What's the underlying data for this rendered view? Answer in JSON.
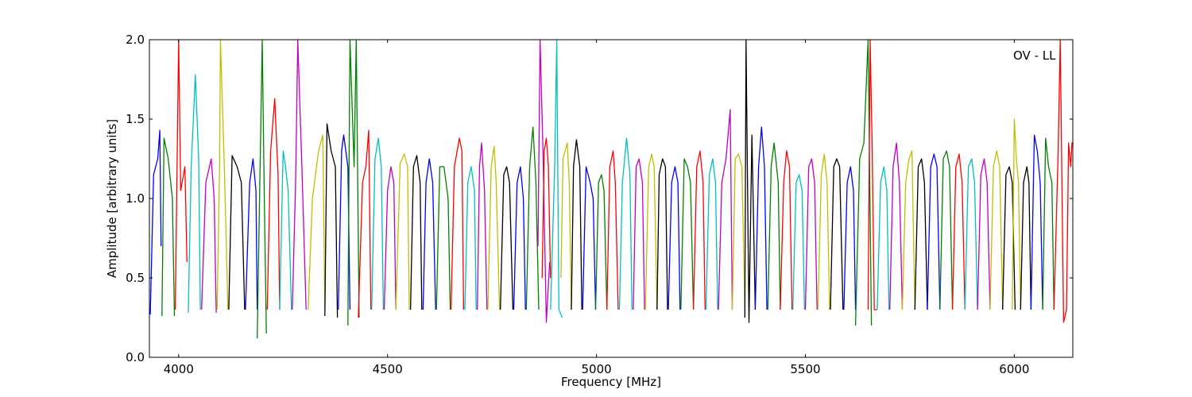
{
  "chart_data": {
    "type": "line",
    "title": "",
    "xlabel": "Frequency [MHz]",
    "ylabel": "Amplitude [arbitrary units]",
    "annotation": "OV - LL",
    "xlim": [
      3930,
      6140
    ],
    "ylim": [
      0.0,
      2.0
    ],
    "xticks": [
      4000,
      4500,
      5000,
      5500,
      6000
    ],
    "yticks": [
      0.0,
      0.5,
      1.0,
      1.5,
      2.0
    ],
    "xtick_labels": [
      "4000",
      "4500",
      "5000",
      "5500",
      "6000"
    ],
    "ytick_labels": [
      "0.0",
      "0.5",
      "1.0",
      "1.5",
      "2.0"
    ],
    "grid": false,
    "legend": "none",
    "colors": [
      "#0000ff",
      "#008000",
      "#ff0000",
      "#00bfbf",
      "#bf00bf",
      "#bfbf00",
      "#000000"
    ],
    "background_series_color": "#c0c0c0",
    "series": [
      {
        "color": "#0000ff",
        "x": [
          3932,
          3940,
          3950,
          3955,
          3958
        ],
        "y": [
          0.27,
          1.15,
          1.25,
          1.43,
          0.7
        ]
      },
      {
        "color": "#008000",
        "x": [
          3960,
          3965,
          3975,
          3985,
          3990
        ],
        "y": [
          0.26,
          1.38,
          1.25,
          1.0,
          0.26
        ]
      },
      {
        "color": "#ff0000",
        "x": [
          3992,
          4000,
          4005,
          4015,
          4020
        ],
        "y": [
          0.3,
          2.0,
          1.05,
          1.2,
          0.6
        ]
      },
      {
        "color": "#00bfbf",
        "x": [
          4023,
          4030,
          4040,
          4048,
          4052
        ],
        "y": [
          0.28,
          1.2,
          1.78,
          1.25,
          0.3
        ]
      },
      {
        "color": "#bf00bf",
        "x": [
          4055,
          4065,
          4078,
          4085,
          4090
        ],
        "y": [
          0.3,
          1.1,
          1.25,
          1.0,
          0.28
        ]
      },
      {
        "color": "#bfbf00",
        "x": [
          4092,
          4098,
          4100,
          4110,
          4118
        ],
        "y": [
          0.3,
          1.2,
          2.0,
          1.15,
          0.3
        ]
      },
      {
        "color": "#000000",
        "x": [
          4120,
          4128,
          4140,
          4150,
          4158
        ],
        "y": [
          0.3,
          1.27,
          1.2,
          1.1,
          0.3
        ]
      },
      {
        "color": "#0000ff",
        "x": [
          4160,
          4170,
          4178,
          4185,
          4188
        ],
        "y": [
          0.3,
          1.1,
          1.25,
          1.05,
          0.3
        ]
      },
      {
        "color": "#008000",
        "x": [
          4188,
          4195,
          4200,
          4205,
          4210
        ],
        "y": [
          0.12,
          1.2,
          2.0,
          1.0,
          0.15
        ]
      },
      {
        "color": "#ff0000",
        "x": [
          4212,
          4220,
          4230,
          4238,
          4242
        ],
        "y": [
          0.3,
          1.29,
          1.63,
          1.15,
          0.3
        ]
      },
      {
        "color": "#00bfbf",
        "x": [
          4242,
          4250,
          4255,
          4262,
          4270
        ],
        "y": [
          0.3,
          1.3,
          1.22,
          1.05,
          0.3
        ]
      },
      {
        "color": "#bf00bf",
        "x": [
          4272,
          4280,
          4285,
          4295,
          4305
        ],
        "y": [
          0.3,
          1.1,
          2.0,
          1.2,
          0.3
        ]
      },
      {
        "color": "#bfbf00",
        "x": [
          4310,
          4320,
          4335,
          4345,
          4350
        ],
        "y": [
          0.3,
          1.0,
          1.3,
          1.4,
          0.3
        ]
      },
      {
        "color": "#000000",
        "x": [
          4350,
          4355,
          4365,
          4375,
          4380
        ],
        "y": [
          0.26,
          1.47,
          1.3,
          1.2,
          0.25
        ]
      },
      {
        "color": "#0000ff",
        "x": [
          4382,
          4390,
          4395,
          4405,
          4410
        ],
        "y": [
          0.3,
          1.3,
          1.4,
          1.2,
          0.3
        ]
      },
      {
        "color": "#008000",
        "x": [
          4405,
          4410,
          4420,
          4425,
          4432
        ],
        "y": [
          0.2,
          2.0,
          1.2,
          2.0,
          0.25
        ]
      },
      {
        "color": "#ff0000",
        "x": [
          4430,
          4440,
          4448,
          4455,
          4460
        ],
        "y": [
          0.25,
          1.1,
          1.2,
          1.43,
          0.3
        ]
      },
      {
        "color": "#00bfbf",
        "x": [
          4462,
          4470,
          4478,
          4485,
          4490
        ],
        "y": [
          0.3,
          1.25,
          1.38,
          1.2,
          0.3
        ]
      },
      {
        "color": "#bf00bf",
        "x": [
          4492,
          4500,
          4508,
          4515,
          4520
        ],
        "y": [
          0.3,
          1.05,
          1.2,
          1.1,
          0.3
        ]
      },
      {
        "color": "#bfbf00",
        "x": [
          4520,
          4530,
          4540,
          4548,
          4552
        ],
        "y": [
          0.3,
          1.22,
          1.28,
          1.2,
          0.3
        ]
      },
      {
        "color": "#000000",
        "x": [
          4555,
          4562,
          4570,
          4578,
          4582
        ],
        "y": [
          0.3,
          1.2,
          1.27,
          1.1,
          0.3
        ]
      },
      {
        "color": "#0000ff",
        "x": [
          4585,
          4592,
          4600,
          4608,
          4615
        ],
        "y": [
          0.3,
          1.1,
          1.25,
          1.1,
          0.3
        ]
      },
      {
        "color": "#008000",
        "x": [
          4617,
          4625,
          4635,
          4645,
          4650
        ],
        "y": [
          0.3,
          1.2,
          1.2,
          1.0,
          0.3
        ]
      },
      {
        "color": "#ff0000",
        "x": [
          4652,
          4660,
          4672,
          4678,
          4682
        ],
        "y": [
          0.3,
          1.2,
          1.38,
          1.3,
          0.3
        ]
      },
      {
        "color": "#00bfbf",
        "x": [
          4685,
          4692,
          4700,
          4708,
          4712
        ],
        "y": [
          0.3,
          1.1,
          1.2,
          1.05,
          0.3
        ]
      },
      {
        "color": "#bf00bf",
        "x": [
          4715,
          4720,
          4725,
          4732,
          4738
        ],
        "y": [
          0.3,
          1.2,
          1.35,
          1.05,
          0.3
        ]
      },
      {
        "color": "#bfbf00",
        "x": [
          4740,
          4748,
          4755,
          4760,
          4768
        ],
        "y": [
          0.3,
          1.2,
          1.33,
          1.1,
          0.3
        ]
      },
      {
        "color": "#000000",
        "x": [
          4770,
          4778,
          4785,
          4792,
          4800
        ],
        "y": [
          0.3,
          1.15,
          1.2,
          1.1,
          0.3
        ]
      },
      {
        "color": "#0000ff",
        "x": [
          4802,
          4810,
          4818,
          4825,
          4830
        ],
        "y": [
          0.3,
          1.1,
          1.2,
          1.0,
          0.3
        ]
      },
      {
        "color": "#008000",
        "x": [
          4832,
          4840,
          4848,
          4855,
          4862
        ],
        "y": [
          0.3,
          1.2,
          1.45,
          1.1,
          0.3
        ]
      },
      {
        "color": "#bf00bf",
        "x": [
          4860,
          4865,
          4872,
          4880,
          4888
        ],
        "y": [
          0.7,
          2.0,
          1.3,
          0.22,
          0.6
        ]
      },
      {
        "color": "#ff0000",
        "x": [
          4870,
          4875,
          4880,
          4885,
          4890
        ],
        "y": [
          0.5,
          1.3,
          1.38,
          1.2,
          0.5
        ]
      },
      {
        "color": "#00bfbf",
        "x": [
          4890,
          4900,
          4905,
          4910,
          4918
        ],
        "y": [
          0.3,
          1.2,
          2.0,
          0.3,
          0.25
        ]
      },
      {
        "color": "#bfbf00",
        "x": [
          4915,
          4920,
          4930,
          4935,
          4940
        ],
        "y": [
          0.5,
          1.25,
          1.35,
          1.1,
          0.3
        ]
      },
      {
        "color": "#000000",
        "x": [
          4940,
          4945,
          4952,
          4960,
          4965
        ],
        "y": [
          0.3,
          1.2,
          1.37,
          1.2,
          0.3
        ]
      },
      {
        "color": "#0000ff",
        "x": [
          4967,
          4975,
          4985,
          4992,
          4998
        ],
        "y": [
          0.3,
          1.2,
          1.1,
          1.0,
          0.3
        ]
      },
      {
        "color": "#008000",
        "x": [
          4998,
          5005,
          5012,
          5018,
          5025
        ],
        "y": [
          0.3,
          1.1,
          1.15,
          1.05,
          0.3
        ]
      },
      {
        "color": "#ff0000",
        "x": [
          5025,
          5032,
          5040,
          5045,
          5052
        ],
        "y": [
          0.3,
          1.2,
          1.3,
          1.1,
          0.3
        ]
      },
      {
        "color": "#00bfbf",
        "x": [
          5055,
          5062,
          5072,
          5080,
          5085
        ],
        "y": [
          0.3,
          1.1,
          1.38,
          1.15,
          0.3
        ]
      },
      {
        "color": "#bf00bf",
        "x": [
          5088,
          5095,
          5102,
          5110,
          5115
        ],
        "y": [
          0.3,
          1.2,
          1.25,
          1.1,
          0.3
        ]
      },
      {
        "color": "#bfbf00",
        "x": [
          5117,
          5125,
          5132,
          5138,
          5145
        ],
        "y": [
          0.3,
          1.2,
          1.28,
          1.2,
          0.3
        ]
      },
      {
        "color": "#000000",
        "x": [
          5145,
          5150,
          5158,
          5165,
          5170
        ],
        "y": [
          0.3,
          1.15,
          1.25,
          1.2,
          0.3
        ]
      },
      {
        "color": "#0000ff",
        "x": [
          5172,
          5180,
          5188,
          5195,
          5200
        ],
        "y": [
          0.3,
          1.1,
          1.2,
          1.1,
          0.3
        ]
      },
      {
        "color": "#008000",
        "x": [
          5202,
          5210,
          5218,
          5225,
          5232
        ],
        "y": [
          0.3,
          1.25,
          1.2,
          1.1,
          0.3
        ]
      },
      {
        "color": "#ff0000",
        "x": [
          5232,
          5240,
          5248,
          5255,
          5260
        ],
        "y": [
          0.3,
          1.2,
          1.3,
          1.1,
          0.3
        ]
      },
      {
        "color": "#00bfbf",
        "x": [
          5262,
          5270,
          5278,
          5285,
          5290
        ],
        "y": [
          0.3,
          1.15,
          1.25,
          1.1,
          0.3
        ]
      },
      {
        "color": "#bf00bf",
        "x": [
          5292,
          5300,
          5310,
          5320,
          5325
        ],
        "y": [
          0.3,
          1.1,
          1.25,
          1.56,
          0.3
        ]
      },
      {
        "color": "#bfbf00",
        "x": [
          5325,
          5332,
          5340,
          5348,
          5355
        ],
        "y": [
          0.3,
          1.25,
          1.28,
          1.2,
          0.3
        ]
      },
      {
        "color": "#000000",
        "x": [
          5355,
          5358,
          5365,
          5372,
          5380
        ],
        "y": [
          0.25,
          2.0,
          0.22,
          1.4,
          0.3
        ]
      },
      {
        "color": "#0000ff",
        "x": [
          5380,
          5388,
          5395,
          5402,
          5408
        ],
        "y": [
          0.3,
          1.2,
          1.45,
          1.2,
          0.3
        ]
      },
      {
        "color": "#008000",
        "x": [
          5410,
          5418,
          5425,
          5435,
          5440
        ],
        "y": [
          0.3,
          1.2,
          1.35,
          1.1,
          0.3
        ]
      },
      {
        "color": "#ff0000",
        "x": [
          5440,
          5448,
          5455,
          5462,
          5468
        ],
        "y": [
          0.3,
          1.1,
          1.3,
          1.2,
          0.3
        ]
      },
      {
        "color": "#00bfbf",
        "x": [
          5470,
          5478,
          5485,
          5492,
          5498
        ],
        "y": [
          0.3,
          1.1,
          1.15,
          1.05,
          0.3
        ]
      },
      {
        "color": "#bf00bf",
        "x": [
          5500,
          5508,
          5515,
          5522,
          5528
        ],
        "y": [
          0.3,
          1.2,
          1.25,
          1.1,
          0.3
        ]
      },
      {
        "color": "#bfbf00",
        "x": [
          5530,
          5538,
          5545,
          5552,
          5558
        ],
        "y": [
          0.3,
          1.15,
          1.28,
          1.1,
          0.3
        ]
      },
      {
        "color": "#000000",
        "x": [
          5560,
          5568,
          5575,
          5582,
          5590
        ],
        "y": [
          0.3,
          1.2,
          1.25,
          1.2,
          0.3
        ]
      },
      {
        "color": "#0000ff",
        "x": [
          5592,
          5600,
          5608,
          5615,
          5620
        ],
        "y": [
          0.3,
          1.1,
          1.2,
          1.05,
          0.3
        ]
      },
      {
        "color": "#008000",
        "x": [
          5620,
          5630,
          5640,
          5650,
          5658
        ],
        "y": [
          0.2,
          1.25,
          1.35,
          2.0,
          0.2
        ]
      },
      {
        "color": "#ff0000",
        "x": [
          5650,
          5655,
          5660,
          5665,
          5672
        ],
        "y": [
          0.3,
          2.0,
          1.3,
          0.3,
          0.3
        ]
      },
      {
        "color": "#00bfbf",
        "x": [
          5672,
          5680,
          5688,
          5695,
          5700
        ],
        "y": [
          0.3,
          1.1,
          1.2,
          1.05,
          0.3
        ]
      },
      {
        "color": "#bf00bf",
        "x": [
          5702,
          5710,
          5718,
          5725,
          5732
        ],
        "y": [
          0.3,
          1.2,
          1.35,
          1.1,
          0.3
        ]
      },
      {
        "color": "#bfbf00",
        "x": [
          5732,
          5740,
          5748,
          5755,
          5762
        ],
        "y": [
          0.3,
          1.1,
          1.25,
          1.3,
          0.3
        ]
      },
      {
        "color": "#000000",
        "x": [
          5762,
          5770,
          5778,
          5785,
          5792
        ],
        "y": [
          0.3,
          1.2,
          1.25,
          1.1,
          0.3
        ]
      },
      {
        "color": "#0000ff",
        "x": [
          5792,
          5800,
          5808,
          5815,
          5822
        ],
        "y": [
          0.3,
          1.2,
          1.28,
          1.2,
          0.3
        ]
      },
      {
        "color": "#008000",
        "x": [
          5822,
          5830,
          5838,
          5845,
          5852
        ],
        "y": [
          0.3,
          1.25,
          1.3,
          1.2,
          0.3
        ]
      },
      {
        "color": "#ff0000",
        "x": [
          5852,
          5860,
          5868,
          5875,
          5882
        ],
        "y": [
          0.3,
          1.2,
          1.28,
          1.1,
          0.3
        ]
      },
      {
        "color": "#00bfbf",
        "x": [
          5882,
          5890,
          5898,
          5905,
          5912
        ],
        "y": [
          0.3,
          1.2,
          1.25,
          1.1,
          0.3
        ]
      },
      {
        "color": "#bf00bf",
        "x": [
          5912,
          5920,
          5928,
          5935,
          5942
        ],
        "y": [
          0.3,
          1.15,
          1.25,
          1.1,
          0.3
        ]
      },
      {
        "color": "#bfbf00",
        "x": [
          5942,
          5950,
          5958,
          5965,
          5972
        ],
        "y": [
          0.3,
          1.2,
          1.3,
          1.2,
          0.3
        ]
      },
      {
        "color": "#000000",
        "x": [
          5972,
          5980,
          5988,
          5995,
          6002
        ],
        "y": [
          0.3,
          1.15,
          1.2,
          1.1,
          0.3
        ]
      },
      {
        "color": "#bfbf00",
        "x": [
          5995,
          6000,
          6005,
          6010,
          6015
        ],
        "y": [
          0.3,
          1.5,
          1.25,
          1.1,
          0.3
        ]
      },
      {
        "color": "#000000",
        "x": [
          6015,
          6022,
          6030,
          6035,
          6040
        ],
        "y": [
          0.3,
          1.1,
          1.2,
          1.1,
          0.3
        ]
      },
      {
        "color": "#0000ff",
        "x": [
          6040,
          6048,
          6055,
          6062,
          6068
        ],
        "y": [
          0.3,
          1.4,
          1.3,
          1.1,
          0.3
        ]
      },
      {
        "color": "#008000",
        "x": [
          6068,
          6075,
          6082,
          6090,
          6095
        ],
        "y": [
          0.3,
          1.38,
          1.2,
          1.1,
          0.3
        ]
      },
      {
        "color": "#ff0000",
        "x": [
          6095,
          6105,
          6110,
          6118,
          6125
        ],
        "y": [
          0.3,
          1.3,
          2.0,
          0.22,
          0.3
        ]
      },
      {
        "color": "#ff0000",
        "x": [
          6125,
          6130,
          6135,
          6138,
          6140
        ],
        "y": [
          0.3,
          1.35,
          1.2,
          1.35,
          1.35
        ]
      }
    ]
  }
}
